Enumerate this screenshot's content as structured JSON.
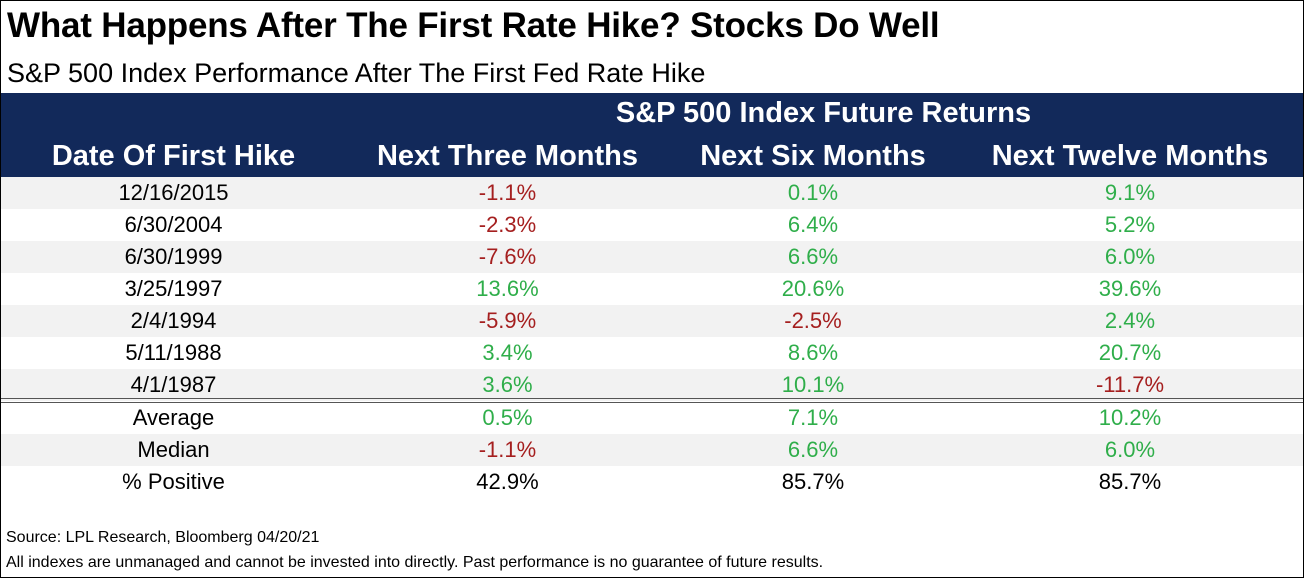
{
  "title": "What Happens After The First Rate Hike? Stocks Do Well",
  "subtitle": "S&P 500 Index Performance After The First Fed Rate Hike",
  "colors": {
    "header_bg": "#12295a",
    "negative": "#a51f1f",
    "positive": "#2fae4a",
    "row_shade": "#f2f2f2"
  },
  "chart_data": {
    "type": "table",
    "title": "What Happens After The First Rate Hike? Stocks Do Well",
    "subtitle": "S&P 500 Index Performance After The First Fed Rate Hike",
    "group_header": "S&P 500 Index Future Returns",
    "columns": [
      "Date Of First Hike",
      "Next Three Months",
      "Next Six Months",
      "Next Twelve Months"
    ],
    "rows": [
      [
        "12/16/2015",
        "-1.1%",
        "0.1%",
        "9.1%"
      ],
      [
        "6/30/2004",
        "-2.3%",
        "6.4%",
        "5.2%"
      ],
      [
        "6/30/1999",
        "-7.6%",
        "6.6%",
        "6.0%"
      ],
      [
        "3/25/1997",
        "13.6%",
        "20.6%",
        "39.6%"
      ],
      [
        "2/4/1994",
        "-5.9%",
        "-2.5%",
        "2.4%"
      ],
      [
        "5/11/1988",
        "3.4%",
        "8.6%",
        "20.7%"
      ],
      [
        "4/1/1987",
        "3.6%",
        "10.1%",
        "-11.7%"
      ]
    ],
    "summary_rows": [
      [
        "Average",
        "0.5%",
        "7.1%",
        "10.2%"
      ],
      [
        "Median",
        "-1.1%",
        "6.6%",
        "6.0%"
      ],
      [
        "% Positive",
        "42.9%",
        "85.7%",
        "85.7%"
      ]
    ]
  },
  "footer": {
    "source": "Source: LPL Research, Bloomberg 04/20/21",
    "disclaimer": "All indexes are unmanaged and cannot be invested into directly. Past performance is no guarantee of future results."
  }
}
